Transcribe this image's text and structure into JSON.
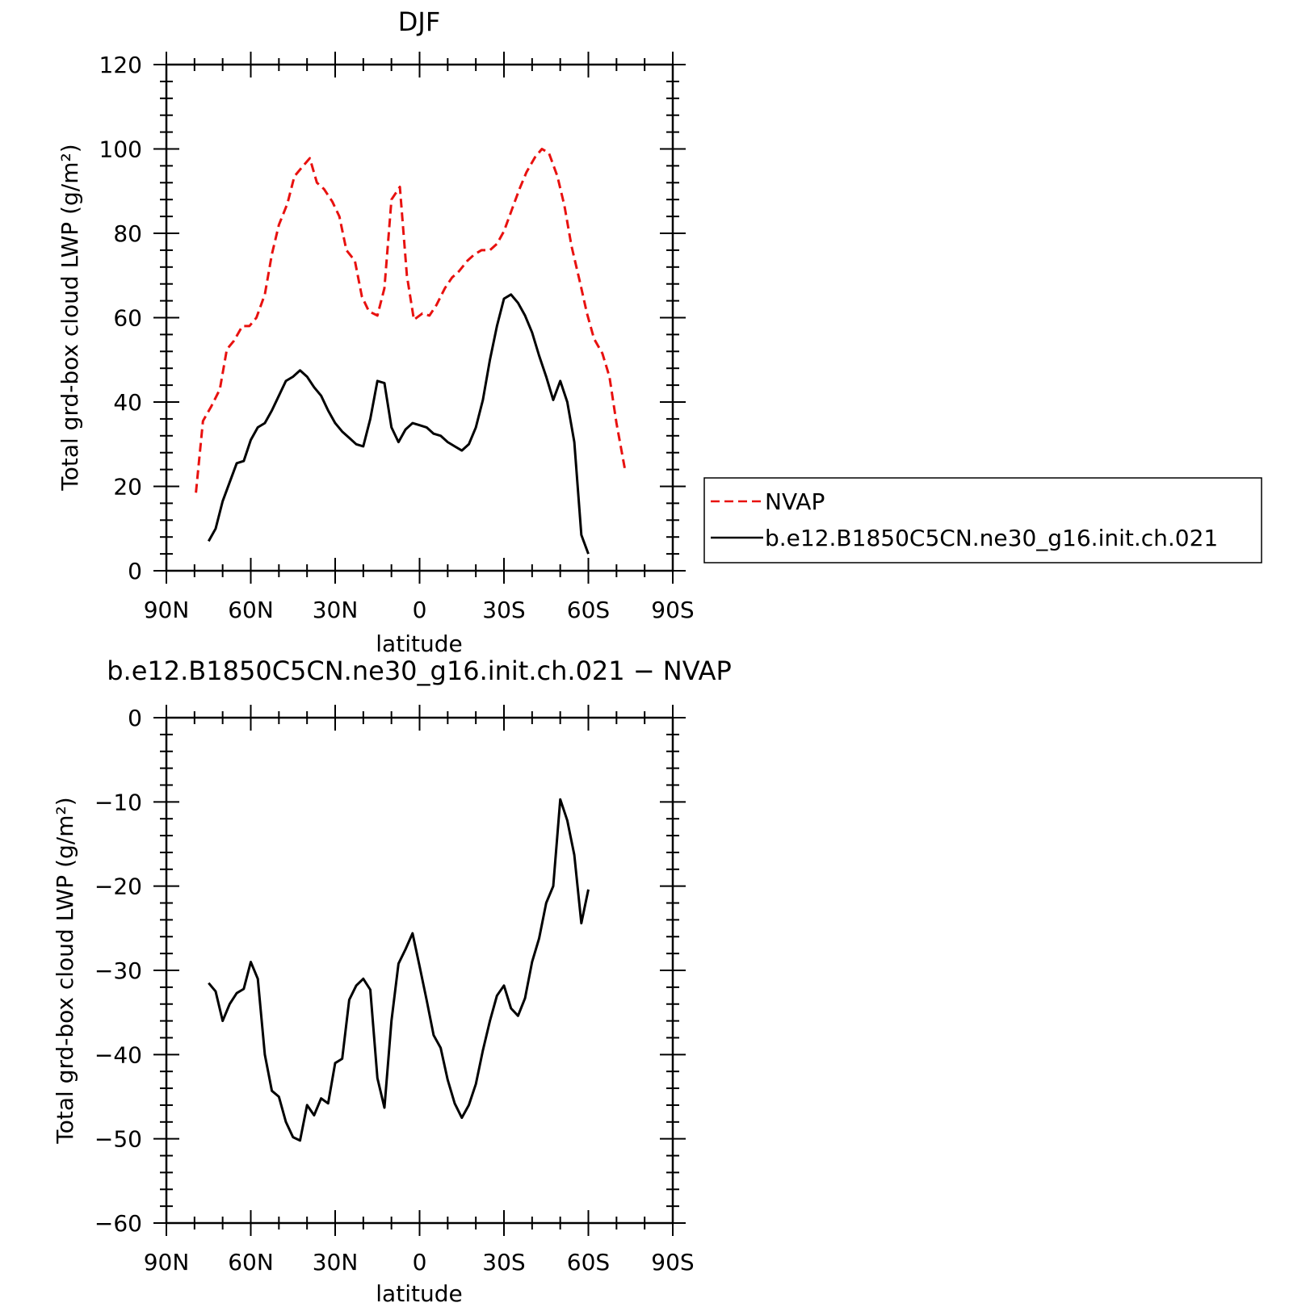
{
  "chart_data": [
    {
      "type": "line",
      "title": "DJF",
      "xlabel": "latitude",
      "ylabel": "Total grd-box cloud LWP (g/m²)",
      "xlim": [
        90,
        -90
      ],
      "ylim": [
        0,
        120
      ],
      "x_ticks": [
        90,
        60,
        30,
        0,
        -30,
        -60,
        -90
      ],
      "x_tick_labels": [
        "90N",
        "60N",
        "30N",
        "0",
        "30S",
        "60S",
        "90S"
      ],
      "y_ticks": [
        0,
        20,
        40,
        60,
        80,
        100,
        120
      ],
      "y_tick_labels": [
        "0",
        "20",
        "40",
        "60",
        "80",
        "100",
        "120"
      ],
      "legend": {
        "placement": "right"
      },
      "series": [
        {
          "name": "NVAP",
          "color": "#e8110f",
          "dash": true,
          "points": [
            [
              79.5,
              18.5
            ],
            [
              77,
              35.5
            ],
            [
              74,
              39
            ],
            [
              71,
              43
            ],
            [
              68.5,
              52.5
            ],
            [
              66,
              54.5
            ],
            [
              63,
              58
            ],
            [
              60.5,
              58
            ],
            [
              58,
              60
            ],
            [
              55,
              65.5
            ],
            [
              52.5,
              75
            ],
            [
              50,
              82
            ],
            [
              47,
              87
            ],
            [
              44.5,
              93.5
            ],
            [
              42,
              95.5
            ],
            [
              39,
              97.8
            ],
            [
              36.5,
              92
            ],
            [
              34,
              90.5
            ],
            [
              31,
              87.5
            ],
            [
              28.5,
              84
            ],
            [
              26,
              76
            ],
            [
              23,
              73.5
            ],
            [
              20.5,
              65
            ],
            [
              18,
              61.5
            ],
            [
              15,
              60.5
            ],
            [
              12.5,
              67
            ],
            [
              10,
              88
            ],
            [
              7,
              91
            ],
            [
              4.5,
              70
            ],
            [
              2,
              59.5
            ],
            [
              -1,
              61
            ],
            [
              -3.5,
              60.5
            ],
            [
              -6,
              63
            ],
            [
              -9,
              67
            ],
            [
              -11.5,
              69.5
            ],
            [
              -14,
              71
            ],
            [
              -17,
              73.5
            ],
            [
              -19.5,
              75
            ],
            [
              -22,
              76
            ],
            [
              -25,
              76
            ],
            [
              -27.5,
              77.5
            ],
            [
              -30,
              80.5
            ],
            [
              -33,
              86
            ],
            [
              -35.5,
              90.5
            ],
            [
              -38,
              94.5
            ],
            [
              -41,
              98
            ],
            [
              -43.5,
              100
            ],
            [
              -46,
              99
            ],
            [
              -49,
              93.5
            ],
            [
              -51.5,
              86.5
            ],
            [
              -54,
              77
            ],
            [
              -57,
              68.5
            ],
            [
              -59.5,
              61
            ],
            [
              -62,
              55
            ],
            [
              -65,
              51.5
            ],
            [
              -67.5,
              46
            ],
            [
              -70,
              35
            ],
            [
              -73,
              24
            ]
          ]
        },
        {
          "name": "b.e12.B1850C5CN.ne30_g16.init.ch.021",
          "color": "#000000",
          "dash": false,
          "points": [
            [
              75,
              7
            ],
            [
              72.5,
              10
            ],
            [
              70,
              16.5
            ],
            [
              67.5,
              21
            ],
            [
              65,
              25.5
            ],
            [
              62.5,
              26
            ],
            [
              60,
              31
            ],
            [
              57.5,
              34
            ],
            [
              55,
              35
            ],
            [
              52.5,
              38
            ],
            [
              50,
              41.5
            ],
            [
              47.5,
              45
            ],
            [
              45,
              46
            ],
            [
              42.5,
              47.5
            ],
            [
              40,
              46
            ],
            [
              37.5,
              43.5
            ],
            [
              35,
              41.5
            ],
            [
              32.5,
              38
            ],
            [
              30,
              35
            ],
            [
              27.5,
              33
            ],
            [
              25,
              31.5
            ],
            [
              22.5,
              30
            ],
            [
              20,
              29.5
            ],
            [
              17.5,
              36
            ],
            [
              15,
              45
            ],
            [
              12.5,
              44.5
            ],
            [
              10,
              34
            ],
            [
              7.5,
              30.5
            ],
            [
              5,
              33.5
            ],
            [
              2.5,
              35
            ],
            [
              0,
              34.5
            ],
            [
              -2.5,
              34
            ],
            [
              -5,
              32.5
            ],
            [
              -7.5,
              32
            ],
            [
              -10,
              30.5
            ],
            [
              -12.5,
              29.5
            ],
            [
              -15,
              28.5
            ],
            [
              -17.5,
              30
            ],
            [
              -20,
              34
            ],
            [
              -22.5,
              40.5
            ],
            [
              -25,
              50
            ],
            [
              -27.5,
              58
            ],
            [
              -30,
              64.5
            ],
            [
              -32.5,
              65.5
            ],
            [
              -35,
              63.5
            ],
            [
              -37.5,
              60.5
            ],
            [
              -40,
              56.5
            ],
            [
              -42.5,
              51
            ],
            [
              -45,
              46
            ],
            [
              -47.5,
              40.5
            ],
            [
              -50,
              45
            ],
            [
              -52.5,
              40
            ],
            [
              -55,
              30.5
            ],
            [
              -57.5,
              8.5
            ],
            [
              -60,
              4
            ]
          ]
        }
      ]
    },
    {
      "type": "line",
      "title": "b.e12.B1850C5CN.ne30_g16.init.ch.021 − NVAP",
      "xlabel": "latitude",
      "ylabel": "Total grd-box cloud LWP (g/m²)",
      "xlim": [
        90,
        -90
      ],
      "ylim": [
        -60,
        0
      ],
      "x_ticks": [
        90,
        60,
        30,
        0,
        -30,
        -60,
        -90
      ],
      "x_tick_labels": [
        "90N",
        "60N",
        "30N",
        "0",
        "30S",
        "60S",
        "90S"
      ],
      "y_ticks": [
        0,
        -10,
        -20,
        -30,
        -40,
        -50,
        -60
      ],
      "y_tick_labels": [
        "0",
        "−10",
        "−20",
        "−30",
        "−40",
        "−50",
        "−60"
      ],
      "series": [
        {
          "color": "#000000",
          "dash": false,
          "points": [
            [
              75,
              -31.5
            ],
            [
              72.5,
              -32.5
            ],
            [
              70,
              -36
            ],
            [
              67.5,
              -34
            ],
            [
              65,
              -32.7
            ],
            [
              62.5,
              -32.2
            ],
            [
              60,
              -29
            ],
            [
              57.5,
              -31
            ],
            [
              55,
              -40
            ],
            [
              52.5,
              -44.3
            ],
            [
              50,
              -45
            ],
            [
              47.5,
              -48
            ],
            [
              45,
              -49.8
            ],
            [
              42.5,
              -50.2
            ],
            [
              40,
              -46
            ],
            [
              37.5,
              -47.2
            ],
            [
              35,
              -45.2
            ],
            [
              32.5,
              -45.8
            ],
            [
              30,
              -41
            ],
            [
              27.5,
              -40.5
            ],
            [
              25,
              -33.5
            ],
            [
              22.5,
              -31.8
            ],
            [
              20,
              -31
            ],
            [
              17.5,
              -32.3
            ],
            [
              15,
              -42.8
            ],
            [
              12.5,
              -46.3
            ],
            [
              10,
              -36
            ],
            [
              7.5,
              -29.2
            ],
            [
              5,
              -27.5
            ],
            [
              2.5,
              -25.6
            ],
            [
              0,
              -29.5
            ],
            [
              -2.5,
              -33.5
            ],
            [
              -5,
              -37.7
            ],
            [
              -7.5,
              -39.2
            ],
            [
              -10,
              -43
            ],
            [
              -12.5,
              -45.8
            ],
            [
              -15,
              -47.5
            ],
            [
              -17.5,
              -46
            ],
            [
              -20,
              -43.5
            ],
            [
              -22.5,
              -39.5
            ],
            [
              -25,
              -36
            ],
            [
              -27.5,
              -33
            ],
            [
              -30,
              -31.8
            ],
            [
              -32.5,
              -34.5
            ],
            [
              -35,
              -35.4
            ],
            [
              -37.5,
              -33.3
            ],
            [
              -40,
              -29
            ],
            [
              -42.5,
              -26.2
            ],
            [
              -45,
              -22
            ],
            [
              -47.5,
              -20
            ],
            [
              -50,
              -9.7
            ],
            [
              -52.5,
              -12.2
            ],
            [
              -55,
              -16.3
            ],
            [
              -57.5,
              -24.4
            ],
            [
              -60,
              -20.4
            ]
          ]
        }
      ]
    }
  ]
}
